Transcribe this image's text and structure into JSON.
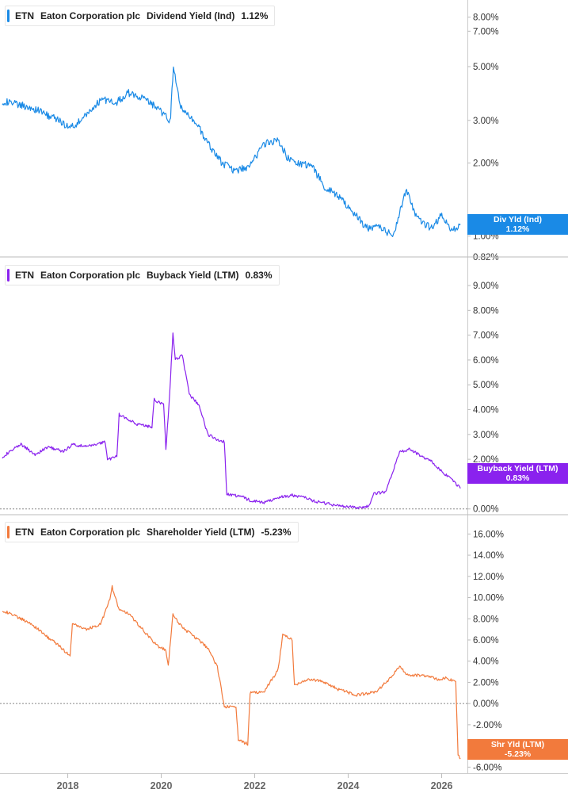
{
  "chart_data": [
    {
      "type": "line",
      "legend": {
        "ticker": "ETN",
        "company": "Eaton Corporation plc",
        "metric": "Dividend Yield (Ind)",
        "value": "1.12%"
      },
      "flag": {
        "label": "Div Yld (Ind)",
        "value": "1.12%"
      },
      "color": "#1a8ae6",
      "scale": "log",
      "ylim": [
        0.82,
        8.6
      ],
      "ticks": [
        "8.00%",
        "7.00%",
        "5.00%",
        "3.00%",
        "2.00%",
        "1.00%",
        "0.82%"
      ],
      "tick_values": [
        8,
        7,
        5,
        3,
        2,
        1,
        0.82
      ],
      "series": [
        {
          "x": [
            2016.6,
            2016.9,
            2017.2,
            2017.5,
            2017.8,
            2018.05,
            2018.3,
            2018.55,
            2018.75,
            2019.0,
            2019.3,
            2019.6,
            2019.9,
            2020.1,
            2020.2,
            2020.26,
            2020.4,
            2020.7,
            2021.0,
            2021.3,
            2021.6,
            2021.9,
            2022.2,
            2022.5,
            2022.7,
            2022.9,
            2023.2,
            2023.5,
            2023.8,
            2024.1,
            2024.4,
            2024.6,
            2024.8,
            2024.95,
            2025.05,
            2025.25,
            2025.45,
            2025.6,
            2025.8,
            2026.0,
            2026.2,
            2026.4
          ],
          "y": [
            3.6,
            3.5,
            3.4,
            3.2,
            3.0,
            2.8,
            3.0,
            3.4,
            3.7,
            3.5,
            3.9,
            3.7,
            3.4,
            3.1,
            3.0,
            5.0,
            3.4,
            3.0,
            2.4,
            2.0,
            1.85,
            1.95,
            2.4,
            2.5,
            2.1,
            2.0,
            1.95,
            1.6,
            1.45,
            1.25,
            1.08,
            1.1,
            1.05,
            1.0,
            1.15,
            1.55,
            1.2,
            1.12,
            1.08,
            1.22,
            1.05,
            1.12
          ]
        }
      ]
    },
    {
      "type": "line",
      "legend": {
        "ticker": "ETN",
        "company": "Eaton Corporation plc",
        "metric": "Buyback Yield (LTM)",
        "value": "0.83%"
      },
      "flag": {
        "label": "Buyback Yield (LTM)",
        "value": "0.83%"
      },
      "color": "#8a22ee",
      "scale": "linear",
      "ylim": [
        -0.2,
        9.8
      ],
      "ticks": [
        "9.00%",
        "8.00%",
        "7.00%",
        "6.00%",
        "5.00%",
        "4.00%",
        "3.00%",
        "2.00%",
        "0.00%"
      ],
      "tick_values": [
        9,
        8,
        7,
        6,
        5,
        4,
        3,
        2,
        0
      ],
      "series": [
        {
          "x": [
            2016.6,
            2017.0,
            2017.3,
            2017.6,
            2017.9,
            2018.1,
            2018.4,
            2018.8,
            2018.85,
            2019.05,
            2019.1,
            2019.5,
            2019.8,
            2019.85,
            2020.05,
            2020.1,
            2020.18,
            2020.25,
            2020.3,
            2020.45,
            2020.6,
            2020.8,
            2021.0,
            2021.2,
            2021.35,
            2021.4,
            2021.7,
            2021.9,
            2022.2,
            2022.5,
            2022.8,
            2023.0,
            2023.3,
            2023.6,
            2023.9,
            2024.2,
            2024.45,
            2024.55,
            2024.8,
            2024.9,
            2025.1,
            2025.3,
            2025.6,
            2025.8,
            2026.0,
            2026.2,
            2026.4
          ],
          "y": [
            2.1,
            2.6,
            2.2,
            2.5,
            2.3,
            2.6,
            2.5,
            2.7,
            2.0,
            2.1,
            3.8,
            3.4,
            3.3,
            4.4,
            4.2,
            2.4,
            4.6,
            7.1,
            6.0,
            6.2,
            4.6,
            4.2,
            3.0,
            2.8,
            2.7,
            0.6,
            0.5,
            0.35,
            0.25,
            0.45,
            0.55,
            0.5,
            0.3,
            0.2,
            0.1,
            0.05,
            0.1,
            0.6,
            0.7,
            1.2,
            2.3,
            2.4,
            2.1,
            1.9,
            1.5,
            1.2,
            0.83
          ]
        }
      ]
    },
    {
      "type": "line",
      "legend": {
        "ticker": "ETN",
        "company": "Eaton Corporation plc",
        "metric": "Shareholder Yield (LTM)",
        "value": "-5.23%"
      },
      "flag": {
        "label": "Shr Yld (LTM)",
        "value": "-5.23%"
      },
      "color": "#f27a3c",
      "scale": "linear",
      "ylim": [
        -6.2,
        17.0
      ],
      "ticks": [
        "16.00%",
        "14.00%",
        "12.00%",
        "10.00%",
        "8.00%",
        "6.00%",
        "4.00%",
        "2.00%",
        "0.00%",
        "-2.00%",
        "-4.00%",
        "-6.00%"
      ],
      "tick_values": [
        16,
        14,
        12,
        10,
        8,
        6,
        4,
        2,
        0,
        -2,
        -4,
        -6
      ],
      "series": [
        {
          "x": [
            2016.6,
            2016.9,
            2017.2,
            2017.5,
            2017.8,
            2018.05,
            2018.1,
            2018.4,
            2018.7,
            2018.9,
            2018.95,
            2019.1,
            2019.3,
            2019.6,
            2019.9,
            2020.1,
            2020.15,
            2020.25,
            2020.3,
            2020.5,
            2020.8,
            2021.0,
            2021.2,
            2021.35,
            2021.4,
            2021.6,
            2021.65,
            2021.85,
            2021.9,
            2022.2,
            2022.5,
            2022.6,
            2022.8,
            2022.85,
            2023.2,
            2023.5,
            2023.8,
            2024.2,
            2024.6,
            2024.9,
            2025.1,
            2025.3,
            2025.6,
            2025.9,
            2026.1,
            2026.3,
            2026.35,
            2026.4
          ],
          "y": [
            8.8,
            8.2,
            7.6,
            6.5,
            5.5,
            4.5,
            7.5,
            7.0,
            7.5,
            9.8,
            11.0,
            8.8,
            8.5,
            7.0,
            5.5,
            5.0,
            3.5,
            8.5,
            8.0,
            7.0,
            6.0,
            5.2,
            3.5,
            -0.3,
            -0.3,
            -0.3,
            -3.5,
            -3.8,
            1.0,
            1.1,
            3.2,
            6.5,
            6.0,
            1.8,
            2.3,
            2.0,
            1.3,
            0.8,
            1.1,
            2.4,
            3.5,
            2.6,
            2.7,
            2.3,
            2.4,
            2.0,
            -4.8,
            -5.23
          ]
        }
      ]
    }
  ],
  "x_axis": {
    "range": [
      2016.55,
      2026.55
    ],
    "labels": [
      "2018",
      "2020",
      "2022",
      "2024",
      "2026"
    ],
    "label_years": [
      2018,
      2020,
      2022,
      2024,
      2026
    ]
  }
}
